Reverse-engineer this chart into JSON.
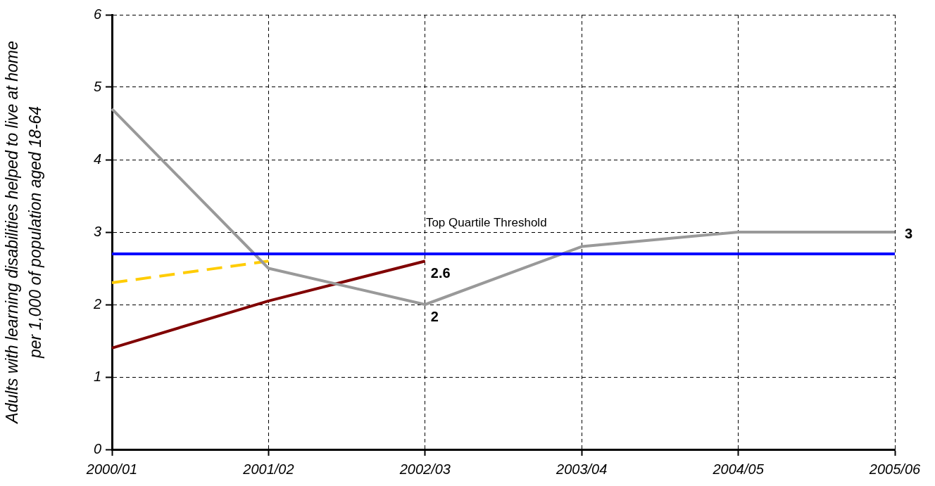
{
  "chart_data": {
    "type": "line",
    "ylabel": "Adults with learning disabilities helped to live at home per 1,000 of population aged 18-64",
    "categories": [
      "2000/01",
      "2001/02",
      "2002/03",
      "2003/04",
      "2004/05",
      "2005/06"
    ],
    "series": [
      {
        "color": "#999999",
        "values": [
          4.7,
          2.5,
          2,
          2.8,
          3,
          3
        ],
        "value_labels": [
          null,
          null,
          "2",
          null,
          null,
          "3"
        ]
      },
      {
        "color": "#800000",
        "values": [
          1.4,
          2.05,
          2.6,
          null,
          null,
          null
        ],
        "value_labels": [
          null,
          null,
          "2.6",
          null,
          null,
          null
        ]
      },
      {
        "color": "#ffcc00",
        "line_style": "dashed",
        "values": [
          2.3,
          2.6,
          null,
          null,
          null,
          null
        ]
      }
    ],
    "ylim": [
      0,
      6
    ],
    "yticks": [
      0,
      1,
      2,
      3,
      4,
      5,
      6
    ],
    "grid": true,
    "marker": "none",
    "line_style": "solid",
    "ref_lines": [
      {
        "axis": "y",
        "value": 2.7,
        "label": "Top Quartile Threshold",
        "color": "#0000ff"
      }
    ]
  }
}
